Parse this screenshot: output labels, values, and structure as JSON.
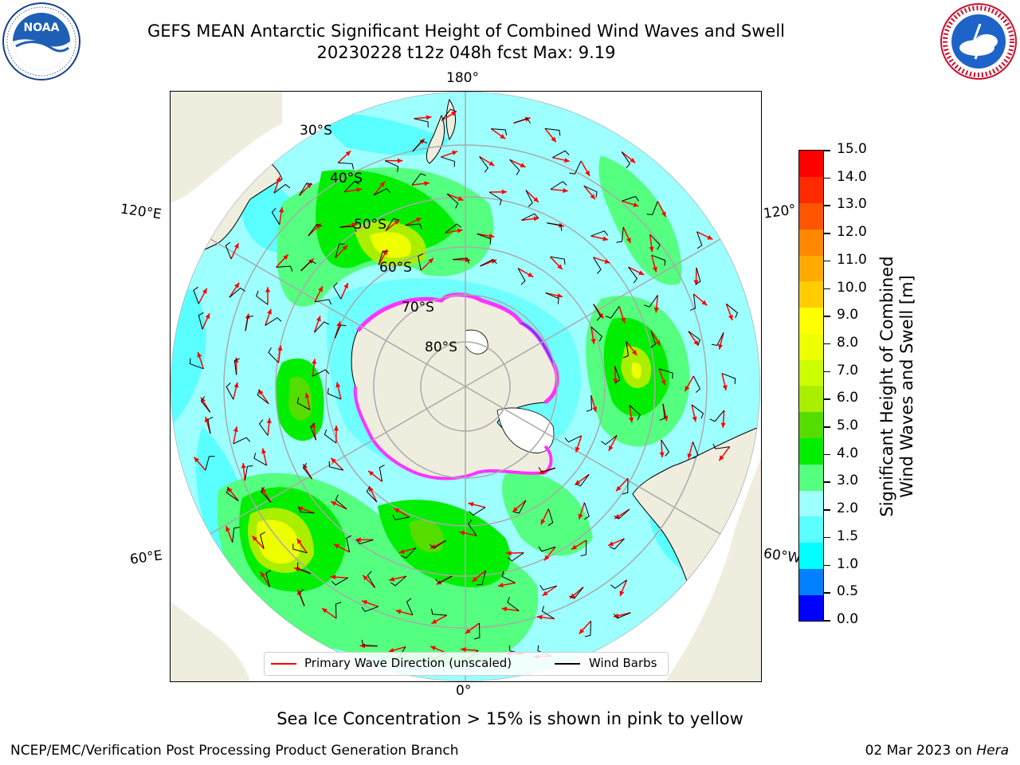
{
  "header": {
    "title_line1": "GEFS MEAN Antarctic Significant Height of Combined Wind Waves and Swell",
    "title_line2": "20230228 t12z 048h fcst   Max: 9.19",
    "noaa_logo_text": "NOAA",
    "noaa_ring_text": "NATIONAL OCEANIC AND ATMOSPHERIC ADMINISTRATION · U.S. DEPARTMENT OF COMMERCE",
    "nws_ring_text": "NATIONAL WEATHER SERVICE"
  },
  "map": {
    "projection": "south-polar-stereographic",
    "longitude_labels": {
      "top": "180°",
      "bottom": "0°",
      "upper_left": "120°E",
      "lower_left": "60°E",
      "upper_right": "120°",
      "lower_right": "60°W"
    },
    "latitude_labels": [
      "30°S",
      "40°S",
      "50°S",
      "60°S",
      "70°S",
      "80°S"
    ],
    "regions": [
      "Antarctica",
      "Australia",
      "New Zealand",
      "South America",
      "Africa"
    ],
    "colors": {
      "land": "#efedde",
      "ocean_low": "#9effff",
      "sea_ice_edge": "#ff33ff",
      "wave_arrow": "#ff0000",
      "wind_barb": "#000000"
    },
    "features": [
      "significant-wave-height-fill",
      "primary-wave-direction-arrows",
      "wind-barbs",
      "sea-ice-concentration-edge",
      "graticule"
    ]
  },
  "colorbar": {
    "label_line1": "Significant Height of Combined",
    "label_line2": "Wind Waves and Swell [m]",
    "ticks": [
      "15.0",
      "14.0",
      "13.0",
      "12.0",
      "11.0",
      "10.0",
      "9.0",
      "8.0",
      "7.0",
      "6.0",
      "5.0",
      "4.0",
      "3.0",
      "2.0",
      "1.5",
      "1.0",
      "0.5",
      "0.0"
    ],
    "colors_bottom_to_top": [
      "#0000ff",
      "#0080ff",
      "#00ffff",
      "#5affff",
      "#9effff",
      "#55ff7f",
      "#00ee00",
      "#55dd00",
      "#aaee00",
      "#ccff00",
      "#eeff00",
      "#ffff00",
      "#ffcc00",
      "#ffaa00",
      "#ff8800",
      "#ff5500",
      "#ff2a00",
      "#ff0000"
    ]
  },
  "legend": {
    "wave_direction": "Primary Wave Direction (unscaled)",
    "wind_barbs": "Wind Barbs"
  },
  "notes": {
    "ice": "Sea Ice Concentration > 15% is shown in pink to yellow"
  },
  "footer": {
    "left": "NCEP/EMC/Verification Post Processing Product Generation Branch",
    "right_date": "02 Mar 2023 on ",
    "right_host": "Hera"
  }
}
